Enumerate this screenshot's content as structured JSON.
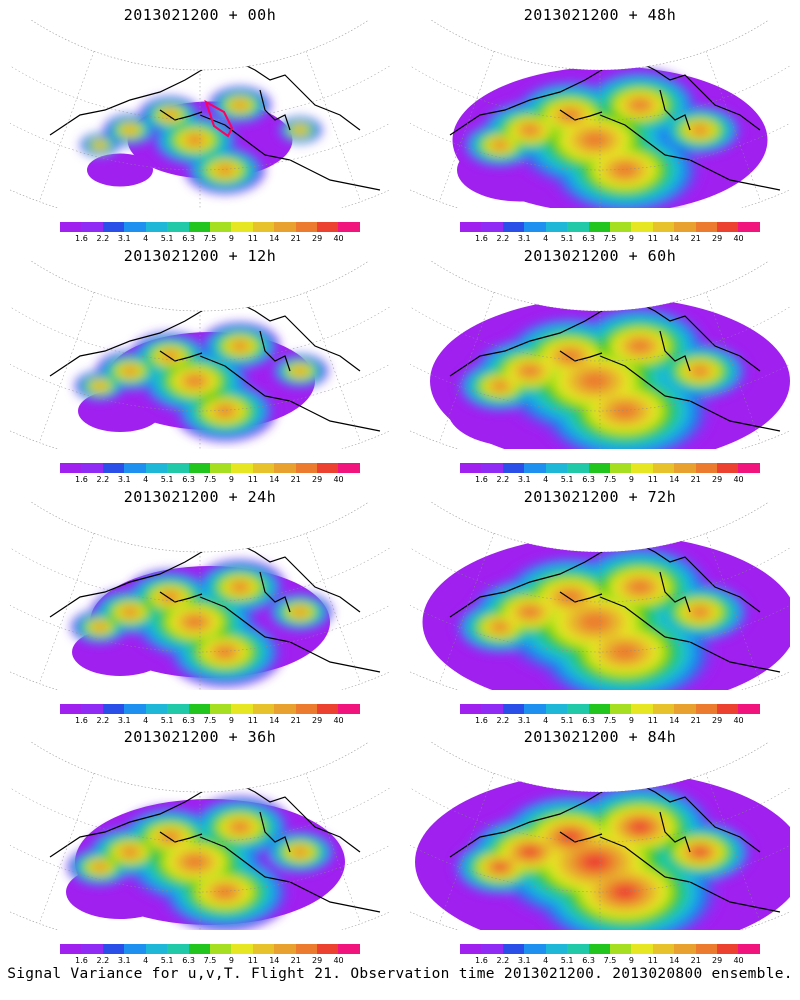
{
  "colorbar": {
    "colors": [
      "#a020f0",
      "#8f2bf5",
      "#2a4fe8",
      "#1e90f0",
      "#1fb7d8",
      "#22c9a8",
      "#22c41e",
      "#a6df1f",
      "#e6e622",
      "#e8c22a",
      "#e8a02e",
      "#ec7a2f",
      "#ec4030",
      "#f0147c"
    ],
    "labels": [
      "1.6",
      "2.2",
      "3.1",
      "4",
      "5.1",
      "6.3",
      "7.5",
      "9",
      "11",
      "14",
      "21",
      "29",
      "40"
    ]
  },
  "panels": [
    {
      "title": "2013021200 + 00h",
      "lead_hours": 0,
      "has_flight_track": true
    },
    {
      "title": "2013021200 + 48h",
      "lead_hours": 48,
      "has_flight_track": false
    },
    {
      "title": "2013021200 + 12h",
      "lead_hours": 12,
      "has_flight_track": false
    },
    {
      "title": "2013021200 + 60h",
      "lead_hours": 60,
      "has_flight_track": false
    },
    {
      "title": "2013021200 + 24h",
      "lead_hours": 24,
      "has_flight_track": false
    },
    {
      "title": "2013021200 + 72h",
      "lead_hours": 72,
      "has_flight_track": false
    },
    {
      "title": "2013021200 + 36h",
      "lead_hours": 36,
      "has_flight_track": false
    },
    {
      "title": "2013021200 + 84h",
      "lead_hours": 84,
      "has_flight_track": false
    }
  ],
  "footer": "Signal Variance for u,v,T. Flight 21. Observation time 2013021200. 2013020800 ensemble."
}
